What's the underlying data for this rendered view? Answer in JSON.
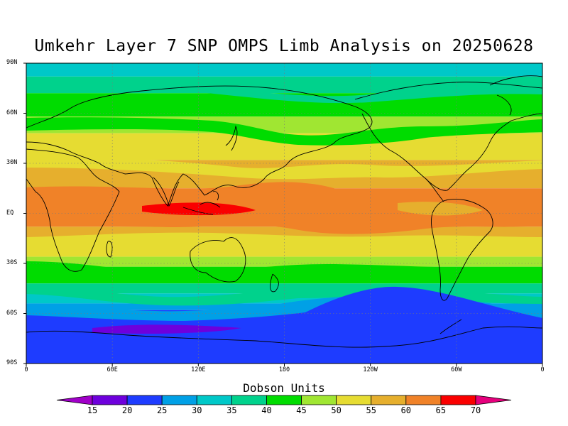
{
  "title": "Umkehr Layer 7 SNP OMPS Limb Analysis on 20250628",
  "lat_labels": [
    {
      "label": "90N",
      "lat": 90
    },
    {
      "label": "60N",
      "lat": 60
    },
    {
      "label": "30N",
      "lat": 30
    },
    {
      "label": "EQ",
      "lat": 0
    },
    {
      "label": "30S",
      "lat": -30
    },
    {
      "label": "60S",
      "lat": -60
    },
    {
      "label": "90S",
      "lat": -90
    }
  ],
  "lon_labels": [
    {
      "label": "0",
      "lon": 0
    },
    {
      "label": "60E",
      "lon": 60
    },
    {
      "label": "120E",
      "lon": 120
    },
    {
      "label": "180",
      "lon": 180
    },
    {
      "label": "120W",
      "lon": 240
    },
    {
      "label": "60W",
      "lon": 300
    },
    {
      "label": "0",
      "lon": 360
    }
  ],
  "colorbar": {
    "title": "Dobson Units",
    "ticks": [
      "15",
      "20",
      "25",
      "30",
      "35",
      "40",
      "45",
      "50",
      "55",
      "60",
      "65",
      "70"
    ],
    "colors": [
      "#a000c8",
      "#6e00dc",
      "#1e3cff",
      "#00a0e6",
      "#00c8c8",
      "#00d28c",
      "#00dc00",
      "#a0e632",
      "#e6dc32",
      "#e6af2d",
      "#f08228",
      "#fa0000",
      "#e6007d"
    ]
  },
  "map_fill": {
    "bands": [
      {
        "lat_top": 90,
        "lat_bottom": 82,
        "value_range": "30-35"
      },
      {
        "lat_top": 82,
        "lat_bottom": 72,
        "value_range": "35-40"
      },
      {
        "lat_top": 72,
        "lat_bottom": 58,
        "value_range": "40-45"
      },
      {
        "lat_top": 58,
        "lat_bottom": 48,
        "value_range": "45-50"
      },
      {
        "lat_top": 48,
        "lat_bottom": 32,
        "value_range": "50-55"
      },
      {
        "lat_top": 32,
        "lat_bottom": 15,
        "value_range": "55-60"
      },
      {
        "lat_top": 15,
        "lat_bottom": -8,
        "value_range": "60-65"
      },
      {
        "lat_top": -8,
        "lat_bottom": -18,
        "value_range": "55-60"
      },
      {
        "lat_top": -18,
        "lat_bottom": -26,
        "value_range": "50-55"
      },
      {
        "lat_top": -26,
        "lat_bottom": -32,
        "value_range": "45-50"
      },
      {
        "lat_top": -32,
        "lat_bottom": -42,
        "value_range": "40-45"
      },
      {
        "lat_top": -42,
        "lat_bottom": -48,
        "value_range": "35-40"
      },
      {
        "lat_top": -48,
        "lat_bottom": -54,
        "value_range": "30-35"
      },
      {
        "lat_top": -54,
        "lat_bottom": -58,
        "value_range": "25-30"
      },
      {
        "lat_top": -58,
        "lat_bottom": -90,
        "value_range": "20-25"
      }
    ]
  }
}
